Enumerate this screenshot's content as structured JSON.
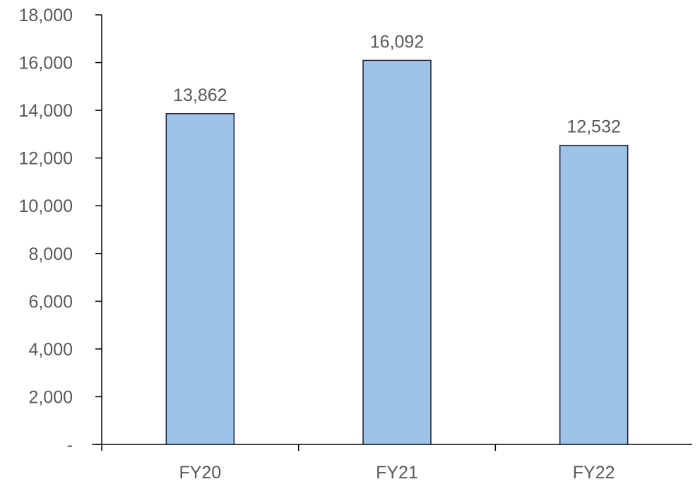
{
  "chart_data": {
    "type": "bar",
    "categories": [
      "FY20",
      "FY21",
      "FY22"
    ],
    "values": [
      13862,
      16092,
      12532
    ],
    "data_labels": [
      "13,862",
      "16,092",
      "12,532"
    ],
    "ylim": [
      0,
      18000
    ],
    "y_ticks": [
      0,
      2000,
      4000,
      6000,
      8000,
      10000,
      12000,
      14000,
      16000,
      18000
    ],
    "y_tick_labels": [
      "-",
      "2,000",
      "4,000",
      "6,000",
      "8,000",
      "10,000",
      "12,000",
      "14,000",
      "16,000",
      "18,000"
    ],
    "title": "",
    "xlabel": "",
    "ylabel": "",
    "grid": false,
    "bar_color": "#9dc3e6"
  }
}
